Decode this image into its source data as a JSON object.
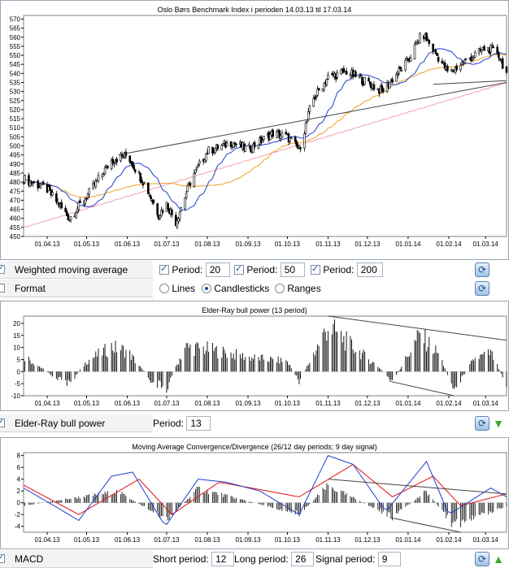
{
  "charts": {
    "price": {
      "title": "Oslo Børs Benchmark Index i perioden 14.03.13 til 17.03.14",
      "y_ticks": [
        "450",
        "455",
        "460",
        "465",
        "470",
        "475",
        "480",
        "485",
        "490",
        "495",
        "500",
        "505",
        "510",
        "515",
        "520",
        "525",
        "530",
        "535",
        "540",
        "545",
        "550",
        "555",
        "560",
        "565",
        "570"
      ],
      "x_ticks": [
        "01.04.13",
        "01.05.13",
        "01.06.13",
        "01.07.13",
        "01.08.13",
        "01.09.13",
        "01.10.13",
        "01.11.13",
        "01.12.13",
        "01.01.14",
        "01.02.14",
        "01.03.14"
      ]
    },
    "elder": {
      "title": "Elder-Ray bull power (13 period)",
      "y_ticks": [
        "-10",
        "-5",
        "0",
        "5",
        "10",
        "15",
        "20"
      ],
      "x_ticks": [
        "01.04.13",
        "01.05.13",
        "01.06.13",
        "01.07.13",
        "01.08.13",
        "01.09.13",
        "01.10.13",
        "01.11.13",
        "01.12.13",
        "01.01.14",
        "01.02.14",
        "01.03.14"
      ]
    },
    "macd": {
      "title": "Moving Average Convergence/Divergence (26/12 day periods; 9 day signal)",
      "y_ticks": [
        "-4",
        "-2",
        "0",
        "2",
        "4",
        "6",
        "8"
      ],
      "x_ticks": [
        "01.04.13",
        "01.05.13",
        "01.06.13",
        "01.07.13",
        "01.08.13",
        "01.09.13",
        "01.10.13",
        "01.11.13",
        "01.12.13",
        "01.01.14",
        "01.02.14",
        "01.03.14"
      ]
    }
  },
  "controls": {
    "wma": {
      "label": "Weighted moving average",
      "period_label": "Period:",
      "p1": "20",
      "p2": "50",
      "p3": "200"
    },
    "format": {
      "label": "Format",
      "opt_lines": "Lines",
      "opt_candles": "Candlesticks",
      "opt_ranges": "Ranges",
      "selected": "Candlesticks"
    },
    "elder": {
      "label": "Elder-Ray bull power",
      "period_label": "Period:",
      "period": "13"
    },
    "macd": {
      "label": "MACD",
      "short_label": "Short period:",
      "short": "12",
      "long_label": "Long period:",
      "long": "26",
      "signal_label": "Signal period:",
      "signal": "9"
    }
  },
  "chart_data": [
    {
      "type": "candlestick",
      "title": "Oslo Børs Benchmark Index i perioden 14.03.13 til 17.03.14",
      "ylim": [
        450,
        572
      ],
      "x_range": [
        "2013-03-14",
        "2014-03-17"
      ],
      "close": [
        {
          "date": "2013-03-14",
          "value": 482
        },
        {
          "date": "2013-04-01",
          "value": 476
        },
        {
          "date": "2013-04-18",
          "value": 460
        },
        {
          "date": "2013-05-01",
          "value": 472
        },
        {
          "date": "2013-05-20",
          "value": 492
        },
        {
          "date": "2013-06-01",
          "value": 495
        },
        {
          "date": "2013-06-15",
          "value": 478
        },
        {
          "date": "2013-06-25",
          "value": 462
        },
        {
          "date": "2013-07-01",
          "value": 468
        },
        {
          "date": "2013-07-08",
          "value": 458
        },
        {
          "date": "2013-07-20",
          "value": 482
        },
        {
          "date": "2013-08-01",
          "value": 497
        },
        {
          "date": "2013-08-20",
          "value": 502
        },
        {
          "date": "2013-09-01",
          "value": 498
        },
        {
          "date": "2013-09-20",
          "value": 507
        },
        {
          "date": "2013-10-01",
          "value": 505
        },
        {
          "date": "2013-10-10",
          "value": 498
        },
        {
          "date": "2013-10-20",
          "value": 525
        },
        {
          "date": "2013-11-01",
          "value": 538
        },
        {
          "date": "2013-11-15",
          "value": 541
        },
        {
          "date": "2013-12-01",
          "value": 535
        },
        {
          "date": "2013-12-12",
          "value": 530
        },
        {
          "date": "2013-12-31",
          "value": 546
        },
        {
          "date": "2014-01-12",
          "value": 562
        },
        {
          "date": "2014-01-22",
          "value": 551
        },
        {
          "date": "2014-02-01",
          "value": 540
        },
        {
          "date": "2014-02-12",
          "value": 546
        },
        {
          "date": "2014-03-01",
          "value": 554
        },
        {
          "date": "2014-03-10",
          "value": 552
        },
        {
          "date": "2014-03-17",
          "value": 540
        }
      ],
      "moving_averages": [
        {
          "name": "WMA 20",
          "color": "#1f3fd0"
        },
        {
          "name": "WMA 50",
          "color": "#f0a020"
        },
        {
          "name": "WMA 200",
          "color": "#f4a0a8"
        }
      ],
      "trendlines": [
        {
          "from": {
            "date": "2013-05-25",
            "value": 495
          },
          "to": {
            "date": "2014-03-17",
            "value": 535
          }
        },
        {
          "from": {
            "date": "2014-01-20",
            "value": 534
          },
          "to": {
            "date": "2014-03-17",
            "value": 536
          }
        }
      ]
    },
    {
      "type": "bar",
      "title": "Elder-Ray bull power (13 period)",
      "ylim": [
        -10,
        23
      ],
      "series": [
        {
          "name": "Elder-Ray bull power",
          "values_by_date": [
            {
              "date": "2013-03-14",
              "value": 8
            },
            {
              "date": "2013-04-05",
              "value": -2
            },
            {
              "date": "2013-04-18",
              "value": -6
            },
            {
              "date": "2013-05-01",
              "value": 5
            },
            {
              "date": "2013-05-20",
              "value": 12
            },
            {
              "date": "2013-06-01",
              "value": 10
            },
            {
              "date": "2013-06-20",
              "value": -5
            },
            {
              "date": "2013-07-01",
              "value": -8
            },
            {
              "date": "2013-07-15",
              "value": 12
            },
            {
              "date": "2013-08-01",
              "value": 11
            },
            {
              "date": "2013-09-01",
              "value": 7
            },
            {
              "date": "2013-10-01",
              "value": 5
            },
            {
              "date": "2013-10-10",
              "value": -5
            },
            {
              "date": "2013-11-01",
              "value": 22
            },
            {
              "date": "2013-11-20",
              "value": 12
            },
            {
              "date": "2013-12-10",
              "value": 2
            },
            {
              "date": "2013-12-20",
              "value": -5
            },
            {
              "date": "2014-01-10",
              "value": 18
            },
            {
              "date": "2014-01-25",
              "value": 8
            },
            {
              "date": "2014-02-05",
              "value": -9
            },
            {
              "date": "2014-02-20",
              "value": 6
            },
            {
              "date": "2014-03-05",
              "value": 9
            },
            {
              "date": "2014-03-17",
              "value": -6
            }
          ]
        }
      ]
    },
    {
      "type": "line",
      "title": "Moving Average Convergence/Divergence (26/12 day periods; 9 day signal)",
      "ylim": [
        -5,
        8.5
      ],
      "series": [
        {
          "color": "#1f3fd0",
          "values_by_date": [
            {
              "date": "2013-03-14",
              "value": 2.5
            },
            {
              "date": "2013-04-10",
              "value": -1
            },
            {
              "date": "2013-04-25",
              "value": -3
            },
            {
              "date": "2013-05-20",
              "value": 4.5
            },
            {
              "date": "2013-06-05",
              "value": 5.2
            },
            {
              "date": "2013-06-30",
              "value": -4
            },
            {
              "date": "2013-07-25",
              "value": 4
            },
            {
              "date": "2013-08-15",
              "value": 3.5
            },
            {
              "date": "2013-09-10",
              "value": 2
            },
            {
              "date": "2013-10-10",
              "value": -2
            },
            {
              "date": "2013-11-01",
              "value": 8
            },
            {
              "date": "2013-11-20",
              "value": 6.5
            },
            {
              "date": "2013-12-15",
              "value": -1.5
            },
            {
              "date": "2014-01-15",
              "value": 7
            },
            {
              "date": "2014-02-01",
              "value": -2
            },
            {
              "date": "2014-03-05",
              "value": 2.5
            },
            {
              "date": "2014-03-17",
              "value": 1
            }
          ]
        },
        {
          "color": "#e01010",
          "values_by_date": [
            {
              "date": "2013-03-14",
              "value": 3
            },
            {
              "date": "2013-04-25",
              "value": -2
            },
            {
              "date": "2013-06-10",
              "value": 4
            },
            {
              "date": "2013-07-05",
              "value": -2
            },
            {
              "date": "2013-08-10",
              "value": 3.5
            },
            {
              "date": "2013-10-10",
              "value": 1
            },
            {
              "date": "2013-11-20",
              "value": 6.5
            },
            {
              "date": "2013-12-20",
              "value": 1
            },
            {
              "date": "2014-01-20",
              "value": 4.5
            },
            {
              "date": "2014-02-10",
              "value": -0.5
            },
            {
              "date": "2014-03-17",
              "value": 1.5
            }
          ]
        },
        {
          "color": "#000000",
          "values_by_date": [
            {
              "date": "2013-03-14",
              "value": -0.5
            },
            {
              "date": "2013-05-25",
              "value": 2
            },
            {
              "date": "2013-07-01",
              "value": -3
            },
            {
              "date": "2013-07-25",
              "value": 2.5
            },
            {
              "date": "2013-10-10",
              "value": -2
            },
            {
              "date": "2013-11-01",
              "value": 3
            },
            {
              "date": "2013-12-20",
              "value": -2.5
            },
            {
              "date": "2014-01-15",
              "value": 2
            },
            {
              "date": "2014-02-05",
              "value": -4
            },
            {
              "date": "2014-03-17",
              "value": -0.5
            }
          ]
        }
      ]
    }
  ]
}
